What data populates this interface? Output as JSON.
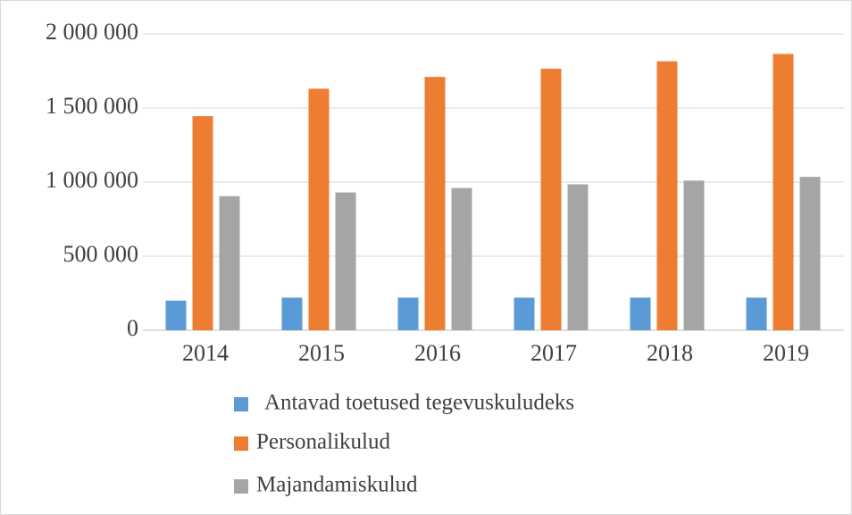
{
  "chart_data": {
    "type": "bar",
    "categories": [
      "2014",
      "2015",
      "2016",
      "2017",
      "2018",
      "2019"
    ],
    "series": [
      {
        "name": "Antavad toetused tegevuskuludeks",
        "color": "#5b9bd5",
        "values": [
          200000,
          220000,
          220000,
          220000,
          220000,
          220000
        ]
      },
      {
        "name": "Personalikulud",
        "color": "#ed7d31",
        "values": [
          1445000,
          1630000,
          1710000,
          1765000,
          1815000,
          1865000
        ]
      },
      {
        "name": "Majandamiskulud",
        "color": "#a5a5a5",
        "values": [
          905000,
          930000,
          960000,
          985000,
          1010000,
          1035000
        ]
      }
    ],
    "ylim": [
      0,
      2000000
    ],
    "yticks": [
      0,
      {
        "value": 500000,
        "label": "500 000"
      },
      {
        "value": 1000000,
        "label": "1 000 000"
      },
      {
        "value": 1500000,
        "label": "1 500 000"
      },
      {
        "value": 2000000,
        "label": "2 000 000"
      }
    ],
    "grid": true,
    "legend": "bottom"
  }
}
